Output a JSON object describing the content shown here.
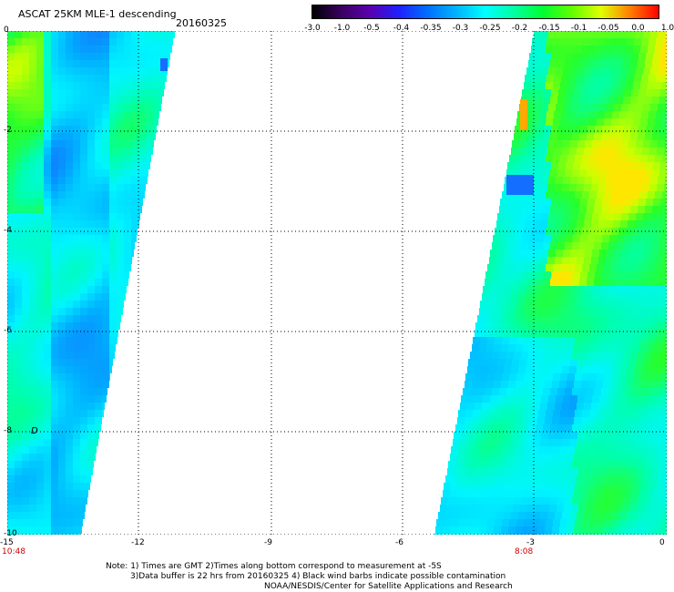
{
  "header": {
    "title": "ASCAT 25KM MLE-1 descending",
    "date": "20160325"
  },
  "colorbar": {
    "labels": [
      "-3.0",
      "-1.0",
      "-0.5",
      "-0.4",
      "-0.35",
      "-0.3",
      "-0.25",
      "-0.2",
      "-0.15",
      "-0.1",
      "-0.05",
      "0.0",
      "1.0"
    ],
    "colors": [
      "#000000",
      "#3a0060",
      "#5a00b0",
      "#2020ff",
      "#0070ff",
      "#00b4ff",
      "#00ffff",
      "#00ffa0",
      "#00ff30",
      "#60ff00",
      "#e0ff00",
      "#ff8000",
      "#ff0000"
    ]
  },
  "map": {
    "x_ticks": [
      "-15",
      "-12",
      "-9",
      "-6",
      "-3",
      "0"
    ],
    "y_ticks": [
      "0",
      "-2",
      "-4",
      "-6",
      "-8",
      "-10"
    ],
    "xlim": [
      -15,
      0
    ],
    "ylim": [
      -10,
      0
    ],
    "time_left": "10:48",
    "time_right": "8:08",
    "marker": "D"
  },
  "notes": {
    "line1": "Note: 1) Times are GMT 2)Times along bottom correspond to measurement at -5S",
    "line2": "3)Data buffer is 22 hrs from 20160325 4) Black wind barbs indicate possible contamination",
    "line3": "NOAA/NESDIS/Center for Satellite Applications and Research"
  }
}
